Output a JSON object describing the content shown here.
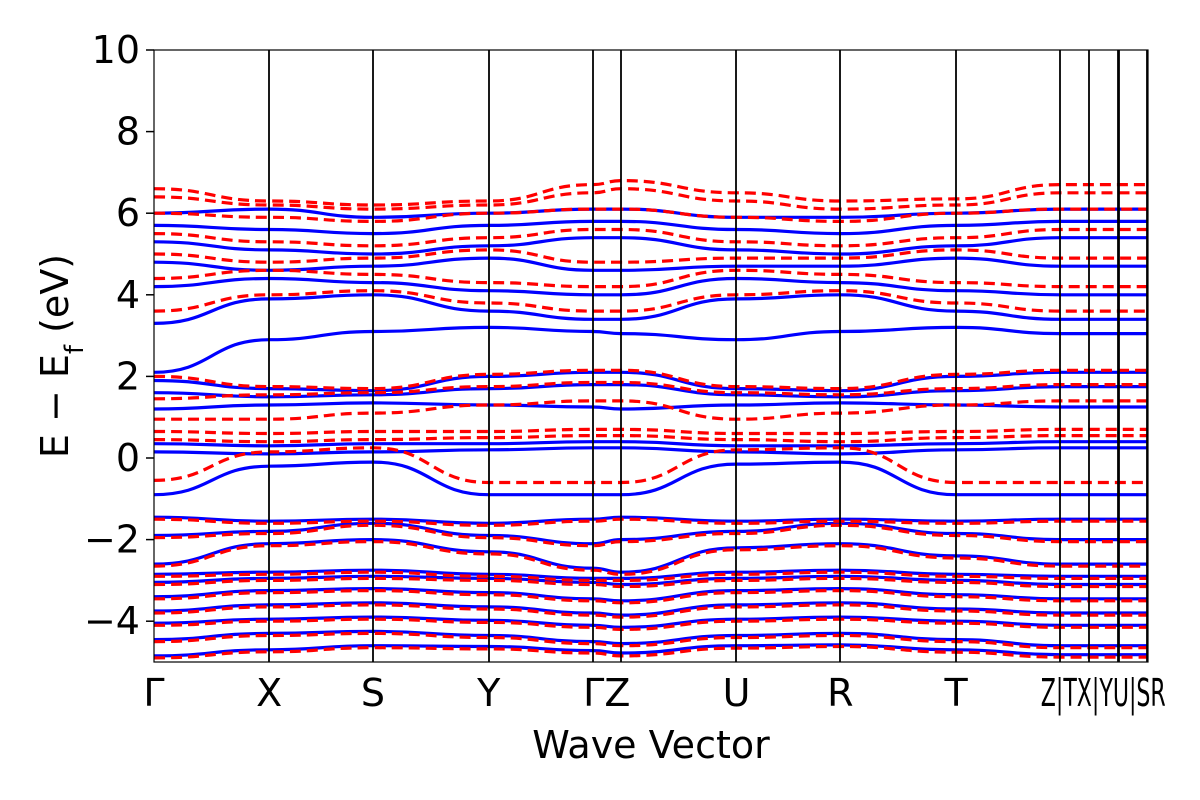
{
  "chart_data": {
    "type": "line",
    "title": "",
    "xlabel": "Wave Vector",
    "ylabel": "E − E_f (eV)",
    "ylabel_parts": {
      "main": "E − E",
      "sub": "f",
      "unit": " (eV)"
    },
    "ylim": [
      -5,
      10
    ],
    "yticks": [
      10,
      8,
      6,
      4,
      2,
      0,
      -2,
      -4
    ],
    "ytick_labels": [
      "10",
      "8",
      "6",
      "4",
      "2",
      "0",
      "−2",
      "−4"
    ],
    "kpath": [
      {
        "label": "Γ",
        "k": 0.0
      },
      {
        "label": "X",
        "k": 0.1159
      },
      {
        "label": "S",
        "k": 0.2203
      },
      {
        "label": "Y",
        "k": 0.3368
      },
      {
        "label": "Γ",
        "k": 0.4412
      },
      {
        "label": "Z",
        "k": 0.47
      },
      {
        "label": "U",
        "k": 0.586
      },
      {
        "label": "R",
        "k": 0.6905
      },
      {
        "label": "T",
        "k": 0.807
      },
      {
        "label": "Z",
        "k": 0.9115
      },
      {
        "label": "T",
        "k": 0.9112
      },
      {
        "label": "X",
        "k": 0.9403
      },
      {
        "label": "Y",
        "k": 0.9695
      },
      {
        "label": "U",
        "k": 0.9698
      },
      {
        "label": "S",
        "k": 0.971
      },
      {
        "label": "R",
        "k": 0.999
      }
    ],
    "kpath_text": "Γ X S Y ΓZ U R T Z|T X|Y U|S R",
    "grid": false,
    "legend": "none",
    "series_colors": {
      "spin_up": "#0000ff",
      "spin_down": "#ff0000"
    },
    "series_styles": {
      "spin_up": "solid",
      "spin_down": "dashed"
    },
    "bands": {
      "spin_up": [
        [
          -4.85,
          -4.7,
          -4.6,
          -4.62,
          -4.72,
          -4.78,
          -4.6,
          -4.58,
          -4.7,
          -4.82
        ],
        [
          -4.45,
          -4.3,
          -4.25,
          -4.35,
          -4.5,
          -4.55,
          -4.35,
          -4.3,
          -4.45,
          -4.6
        ],
        [
          -4.05,
          -3.95,
          -3.9,
          -3.98,
          -4.1,
          -4.15,
          -3.95,
          -3.9,
          -4.0,
          -4.1
        ],
        [
          -3.75,
          -3.6,
          -3.55,
          -3.65,
          -3.8,
          -3.85,
          -3.6,
          -3.55,
          -3.7,
          -3.8
        ],
        [
          -3.4,
          -3.25,
          -3.2,
          -3.3,
          -3.45,
          -3.5,
          -3.25,
          -3.2,
          -3.35,
          -3.45
        ],
        [
          -3.05,
          -2.95,
          -2.9,
          -2.95,
          -3.05,
          -3.1,
          -2.95,
          -2.9,
          -3.0,
          -3.1
        ],
        [
          -2.85,
          -2.8,
          -2.75,
          -2.85,
          -2.95,
          -2.95,
          -2.8,
          -2.75,
          -2.85,
          -2.9
        ],
        [
          -2.6,
          -2.1,
          -2.0,
          -2.3,
          -2.7,
          -2.8,
          -2.2,
          -2.1,
          -2.4,
          -2.6
        ],
        [
          -1.9,
          -1.8,
          -1.6,
          -1.9,
          -2.1,
          -2.0,
          -1.8,
          -1.6,
          -1.85,
          -2.0
        ],
        [
          -1.45,
          -1.55,
          -1.5,
          -1.6,
          -1.5,
          -1.45,
          -1.55,
          -1.5,
          -1.55,
          -1.5
        ],
        [
          -0.9,
          -0.2,
          -0.1,
          -0.9,
          -0.9,
          -0.9,
          -0.15,
          -0.1,
          -0.9,
          -0.9
        ],
        [
          0.15,
          0.1,
          0.15,
          0.2,
          0.25,
          0.25,
          0.15,
          0.1,
          0.2,
          0.25
        ],
        [
          0.35,
          0.3,
          0.35,
          0.35,
          0.4,
          0.4,
          0.3,
          0.3,
          0.35,
          0.4
        ],
        [
          1.2,
          1.3,
          1.35,
          1.3,
          1.25,
          1.2,
          1.3,
          1.35,
          1.3,
          1.25
        ],
        [
          1.6,
          1.5,
          1.55,
          1.7,
          1.8,
          1.8,
          1.55,
          1.5,
          1.65,
          1.75
        ],
        [
          1.9,
          1.7,
          1.65,
          2.0,
          2.1,
          2.1,
          1.7,
          1.65,
          2.0,
          2.1
        ],
        [
          2.1,
          2.9,
          3.1,
          3.2,
          3.1,
          3.05,
          2.9,
          3.1,
          3.2,
          3.05
        ],
        [
          3.3,
          3.9,
          4.0,
          3.6,
          3.4,
          3.4,
          3.9,
          4.0,
          3.6,
          3.4
        ],
        [
          4.2,
          4.4,
          4.3,
          4.1,
          4.0,
          4.0,
          4.4,
          4.3,
          4.1,
          4.0
        ],
        [
          4.8,
          4.6,
          4.7,
          4.9,
          4.6,
          4.6,
          4.7,
          4.7,
          4.9,
          4.7
        ],
        [
          5.3,
          5.1,
          5.0,
          5.2,
          5.4,
          5.4,
          5.1,
          5.0,
          5.2,
          5.4
        ],
        [
          5.7,
          5.6,
          5.5,
          5.7,
          5.8,
          5.8,
          5.6,
          5.5,
          5.7,
          5.8
        ],
        [
          6.0,
          6.1,
          5.9,
          6.0,
          6.1,
          6.1,
          5.9,
          5.9,
          6.0,
          6.1
        ]
      ],
      "spin_down": [
        [
          -4.9,
          -4.75,
          -4.65,
          -4.68,
          -4.78,
          -4.85,
          -4.66,
          -4.62,
          -4.76,
          -4.88
        ],
        [
          -4.5,
          -4.35,
          -4.3,
          -4.4,
          -4.55,
          -4.6,
          -4.4,
          -4.35,
          -4.5,
          -4.65
        ],
        [
          -4.1,
          -4.0,
          -3.95,
          -4.03,
          -4.15,
          -4.2,
          -4.0,
          -3.95,
          -4.05,
          -4.15
        ],
        [
          -3.8,
          -3.65,
          -3.6,
          -3.7,
          -3.85,
          -3.9,
          -3.65,
          -3.6,
          -3.75,
          -3.85
        ],
        [
          -3.45,
          -3.3,
          -3.25,
          -3.35,
          -3.5,
          -3.55,
          -3.3,
          -3.25,
          -3.4,
          -3.5
        ],
        [
          -3.1,
          -3.0,
          -2.95,
          -3.0,
          -3.1,
          -3.15,
          -3.0,
          -2.95,
          -3.05,
          -3.15
        ],
        [
          -2.9,
          -2.85,
          -2.8,
          -2.9,
          -3.0,
          -3.0,
          -2.85,
          -2.8,
          -2.9,
          -2.95
        ],
        [
          -2.65,
          -2.15,
          -2.05,
          -2.35,
          -2.75,
          -2.85,
          -2.25,
          -2.15,
          -2.45,
          -2.65
        ],
        [
          -1.95,
          -1.85,
          -1.65,
          -1.95,
          -2.15,
          -2.05,
          -1.85,
          -1.65,
          -1.9,
          -2.05
        ],
        [
          -1.5,
          -1.6,
          -1.55,
          -1.65,
          -1.55,
          -1.5,
          -1.6,
          -1.55,
          -1.6,
          -1.55
        ],
        [
          -0.55,
          0.15,
          0.25,
          -0.6,
          -0.6,
          -0.6,
          0.2,
          0.25,
          -0.6,
          -0.6
        ],
        [
          0.45,
          0.4,
          0.45,
          0.5,
          0.55,
          0.55,
          0.45,
          0.4,
          0.5,
          0.55
        ],
        [
          0.65,
          0.6,
          0.65,
          0.65,
          0.7,
          0.7,
          0.6,
          0.6,
          0.65,
          0.7
        ],
        [
          0.95,
          0.95,
          1.1,
          1.3,
          1.4,
          1.4,
          0.95,
          1.1,
          1.3,
          1.4
        ],
        [
          1.45,
          1.55,
          1.6,
          1.75,
          1.85,
          1.85,
          1.6,
          1.55,
          1.7,
          1.8
        ],
        [
          2.0,
          1.75,
          1.7,
          2.05,
          2.15,
          2.15,
          1.75,
          1.7,
          2.05,
          2.15
        ],
        [
          3.6,
          4.0,
          4.1,
          3.8,
          3.6,
          3.6,
          4.0,
          4.1,
          3.8,
          3.6
        ],
        [
          4.4,
          4.6,
          4.5,
          4.3,
          4.2,
          4.2,
          4.6,
          4.5,
          4.3,
          4.2
        ],
        [
          5.0,
          4.8,
          4.9,
          5.1,
          4.8,
          4.8,
          4.9,
          4.9,
          5.1,
          4.9
        ],
        [
          5.5,
          5.3,
          5.2,
          5.4,
          5.6,
          5.6,
          5.3,
          5.2,
          5.4,
          5.6
        ],
        [
          6.0,
          5.9,
          5.8,
          6.0,
          6.1,
          6.1,
          5.9,
          5.8,
          6.0,
          6.1
        ],
        [
          6.4,
          6.2,
          6.1,
          6.2,
          6.5,
          6.6,
          6.3,
          6.1,
          6.2,
          6.5
        ],
        [
          6.6,
          6.3,
          6.2,
          6.3,
          6.7,
          6.8,
          6.5,
          6.3,
          6.35,
          6.7
        ]
      ]
    }
  }
}
